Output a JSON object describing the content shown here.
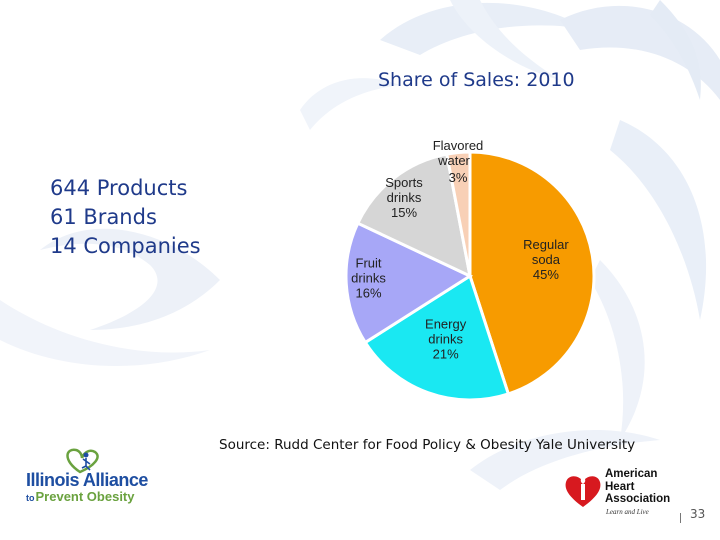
{
  "slide": {
    "title": "Share of Sales: 2010",
    "stats": [
      "644 Products",
      "61 Brands",
      "14 Companies"
    ],
    "source": "Source:  Rudd Center for Food Policy & Obesity Yale University",
    "page_number": "33"
  },
  "logos": {
    "alliance": {
      "line1": "Illinois Alliance",
      "to": "to",
      "line2": "Prevent Obesity"
    },
    "aha": {
      "lines": [
        "American",
        "Heart",
        "Association"
      ],
      "tagline": "Learn and Live"
    }
  },
  "chart_data": {
    "type": "pie",
    "title": "Share of Sales: 2010",
    "slices": [
      {
        "name_lines": [
          "Regular",
          "soda"
        ],
        "pct_label": "45%",
        "value": 45,
        "color": "#f79b00"
      },
      {
        "name_lines": [
          "Energy",
          "drinks"
        ],
        "pct_label": "21%",
        "value": 21,
        "color": "#1ae8f2"
      },
      {
        "name_lines": [
          "Fruit",
          "drinks"
        ],
        "pct_label": "16%",
        "value": 16,
        "color": "#a7a7f7"
      },
      {
        "name_lines": [
          "Sports",
          "drinks"
        ],
        "pct_label": "15%",
        "value": 15,
        "color": "#d6d6d6"
      },
      {
        "name_lines": [
          "Flavored",
          "water"
        ],
        "pct_label": "3%",
        "value": 3,
        "color": "#f8d0b6"
      }
    ]
  }
}
